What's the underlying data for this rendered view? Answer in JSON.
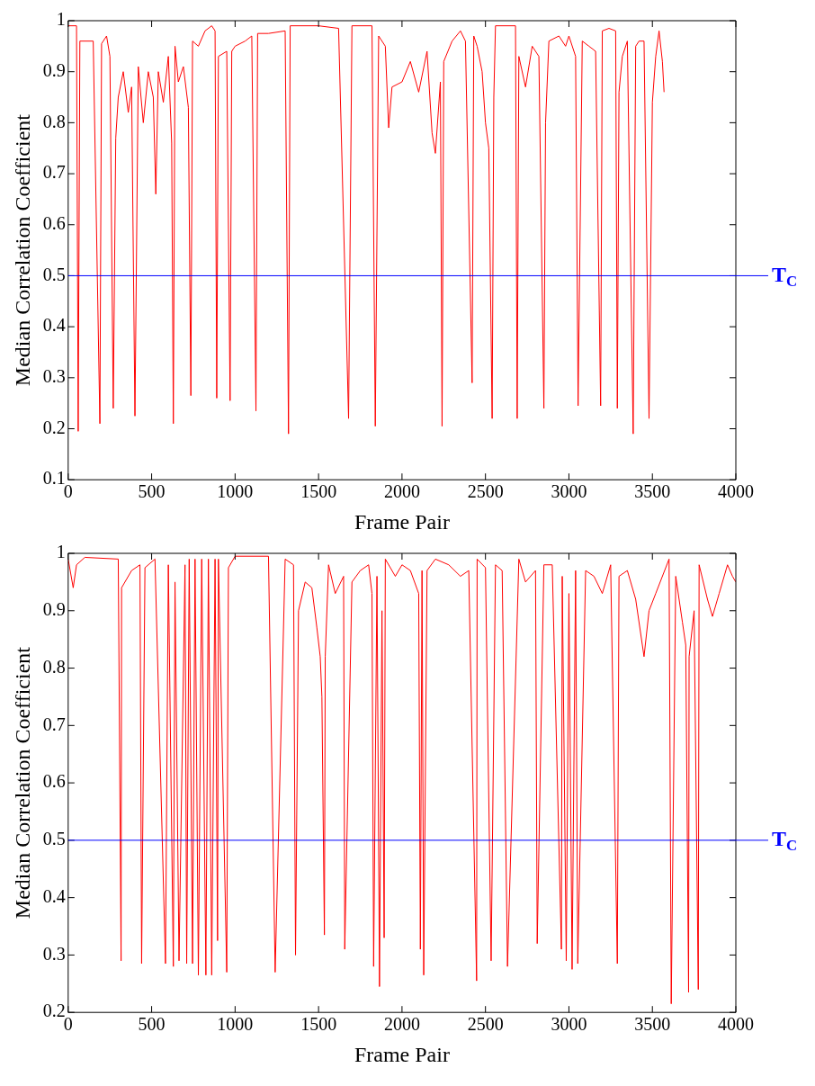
{
  "chart_data": [
    {
      "type": "line",
      "xlabel": "Frame Pair",
      "ylabel": "Median Correlation Coefficient",
      "xlim": [
        0,
        4000
      ],
      "xticks": [
        0,
        500,
        1000,
        1500,
        2000,
        2500,
        3000,
        3500,
        4000
      ],
      "ylim": [
        0.1,
        1
      ],
      "yticks": [
        0.1,
        0.2,
        0.3,
        0.4,
        0.5,
        0.6,
        0.7,
        0.8,
        0.9,
        1
      ],
      "grid": false,
      "legend": false,
      "marker": "none",
      "line_style": "solid",
      "ref_lines": [
        {
          "axis": "y",
          "value": 0.5,
          "label": "T$_{C}$",
          "color": "#0000ff"
        }
      ],
      "series": [
        {
          "color": "#ff0000",
          "x": [
            0,
            50,
            60,
            70,
            150,
            190,
            200,
            230,
            250,
            270,
            285,
            300,
            330,
            360,
            380,
            400,
            420,
            450,
            480,
            510,
            525,
            540,
            570,
            600,
            620,
            630,
            640,
            660,
            690,
            720,
            735,
            745,
            780,
            820,
            860,
            880,
            890,
            900,
            950,
            970,
            980,
            1000,
            1060,
            1100,
            1125,
            1135,
            1200,
            1300,
            1320,
            1330,
            1500,
            1620,
            1680,
            1700,
            1820,
            1840,
            1860,
            1900,
            1920,
            1940,
            2000,
            2050,
            2100,
            2150,
            2180,
            2200,
            2230,
            2240,
            2250,
            2300,
            2350,
            2380,
            2420,
            2430,
            2450,
            2480,
            2500,
            2520,
            2540,
            2550,
            2560,
            2680,
            2690,
            2700,
            2740,
            2780,
            2820,
            2850,
            2860,
            2880,
            2940,
            2980,
            3000,
            3040,
            3055,
            3080,
            3120,
            3160,
            3190,
            3200,
            3240,
            3280,
            3290,
            3300,
            3320,
            3350,
            3385,
            3400,
            3420,
            3450,
            3480,
            3500,
            3520,
            3540,
            3560,
            3570
          ],
          "values": [
            0.99,
            0.99,
            0.195,
            0.96,
            0.96,
            0.21,
            0.955,
            0.97,
            0.93,
            0.24,
            0.77,
            0.85,
            0.9,
            0.82,
            0.87,
            0.225,
            0.91,
            0.8,
            0.9,
            0.85,
            0.66,
            0.9,
            0.84,
            0.93,
            0.76,
            0.21,
            0.95,
            0.88,
            0.91,
            0.83,
            0.265,
            0.96,
            0.95,
            0.98,
            0.99,
            0.98,
            0.26,
            0.93,
            0.94,
            0.255,
            0.94,
            0.95,
            0.96,
            0.97,
            0.235,
            0.975,
            0.975,
            0.98,
            0.19,
            0.99,
            0.99,
            0.985,
            0.22,
            0.99,
            0.99,
            0.205,
            0.97,
            0.95,
            0.79,
            0.87,
            0.88,
            0.92,
            0.86,
            0.94,
            0.78,
            0.74,
            0.88,
            0.205,
            0.92,
            0.96,
            0.98,
            0.96,
            0.29,
            0.97,
            0.95,
            0.9,
            0.8,
            0.75,
            0.22,
            0.85,
            0.99,
            0.99,
            0.22,
            0.93,
            0.87,
            0.95,
            0.93,
            0.24,
            0.8,
            0.96,
            0.97,
            0.95,
            0.97,
            0.93,
            0.245,
            0.96,
            0.95,
            0.94,
            0.245,
            0.98,
            0.985,
            0.98,
            0.24,
            0.86,
            0.93,
            0.96,
            0.19,
            0.95,
            0.96,
            0.96,
            0.22,
            0.84,
            0.93,
            0.98,
            0.92,
            0.86
          ]
        }
      ]
    },
    {
      "type": "line",
      "xlabel": "Frame Pair",
      "ylabel": "Median Correlation Coefficient",
      "xlim": [
        0,
        4000
      ],
      "xticks": [
        0,
        500,
        1000,
        1500,
        2000,
        2500,
        3000,
        3500,
        4000
      ],
      "ylim": [
        0.2,
        1
      ],
      "yticks": [
        0.2,
        0.3,
        0.4,
        0.5,
        0.6,
        0.7,
        0.8,
        0.9,
        1
      ],
      "grid": false,
      "legend": false,
      "marker": "none",
      "line_style": "solid",
      "ref_lines": [
        {
          "axis": "y",
          "value": 0.5,
          "label": "T$_{C}$",
          "color": "#0000ff"
        }
      ],
      "series": [
        {
          "color": "#ff0000",
          "x": [
            0,
            30,
            50,
            100,
            300,
            317,
            320,
            380,
            430,
            440,
            460,
            520,
            583,
            600,
            630,
            640,
            664,
            700,
            710,
            725,
            745,
            760,
            780,
            800,
            825,
            840,
            860,
            880,
            895,
            900,
            950,
            960,
            1000,
            1200,
            1240,
            1300,
            1350,
            1362,
            1380,
            1420,
            1460,
            1490,
            1510,
            1520,
            1535,
            1540,
            1560,
            1600,
            1650,
            1657,
            1700,
            1750,
            1800,
            1820,
            1830,
            1850,
            1865,
            1880,
            1893,
            1900,
            1960,
            2000,
            2050,
            2100,
            2110,
            2120,
            2130,
            2150,
            2200,
            2280,
            2350,
            2400,
            2447,
            2450,
            2500,
            2534,
            2560,
            2600,
            2632,
            2700,
            2740,
            2800,
            2810,
            2850,
            2900,
            2955,
            2960,
            2984,
            3000,
            3019,
            3040,
            3053,
            3100,
            3150,
            3200,
            3250,
            3290,
            3300,
            3350,
            3400,
            3450,
            3480,
            3520,
            3600,
            3613,
            3640,
            3680,
            3700,
            3717,
            3720,
            3750,
            3775,
            3780,
            3830,
            3860,
            3900,
            3950,
            3980,
            4000
          ],
          "values": [
            0.99,
            0.94,
            0.98,
            0.993,
            0.99,
            0.29,
            0.94,
            0.97,
            0.98,
            0.285,
            0.975,
            0.99,
            0.285,
            0.98,
            0.28,
            0.95,
            0.29,
            0.98,
            0.285,
            0.99,
            0.285,
            0.99,
            0.265,
            0.99,
            0.265,
            0.99,
            0.265,
            0.99,
            0.325,
            0.99,
            0.27,
            0.975,
            0.995,
            0.995,
            0.27,
            0.99,
            0.98,
            0.3,
            0.9,
            0.95,
            0.94,
            0.87,
            0.82,
            0.75,
            0.335,
            0.82,
            0.98,
            0.93,
            0.96,
            0.31,
            0.95,
            0.97,
            0.98,
            0.93,
            0.28,
            0.96,
            0.245,
            0.9,
            0.33,
            0.99,
            0.96,
            0.98,
            0.97,
            0.93,
            0.31,
            0.97,
            0.265,
            0.97,
            0.99,
            0.98,
            0.96,
            0.97,
            0.255,
            0.99,
            0.975,
            0.29,
            0.98,
            0.97,
            0.28,
            0.99,
            0.95,
            0.97,
            0.32,
            0.98,
            0.98,
            0.31,
            0.96,
            0.29,
            0.93,
            0.275,
            0.97,
            0.285,
            0.97,
            0.96,
            0.93,
            0.98,
            0.285,
            0.96,
            0.97,
            0.92,
            0.82,
            0.9,
            0.93,
            0.99,
            0.215,
            0.96,
            0.88,
            0.84,
            0.235,
            0.82,
            0.9,
            0.24,
            0.98,
            0.92,
            0.89,
            0.93,
            0.98,
            0.96,
            0.95
          ]
        }
      ]
    }
  ]
}
